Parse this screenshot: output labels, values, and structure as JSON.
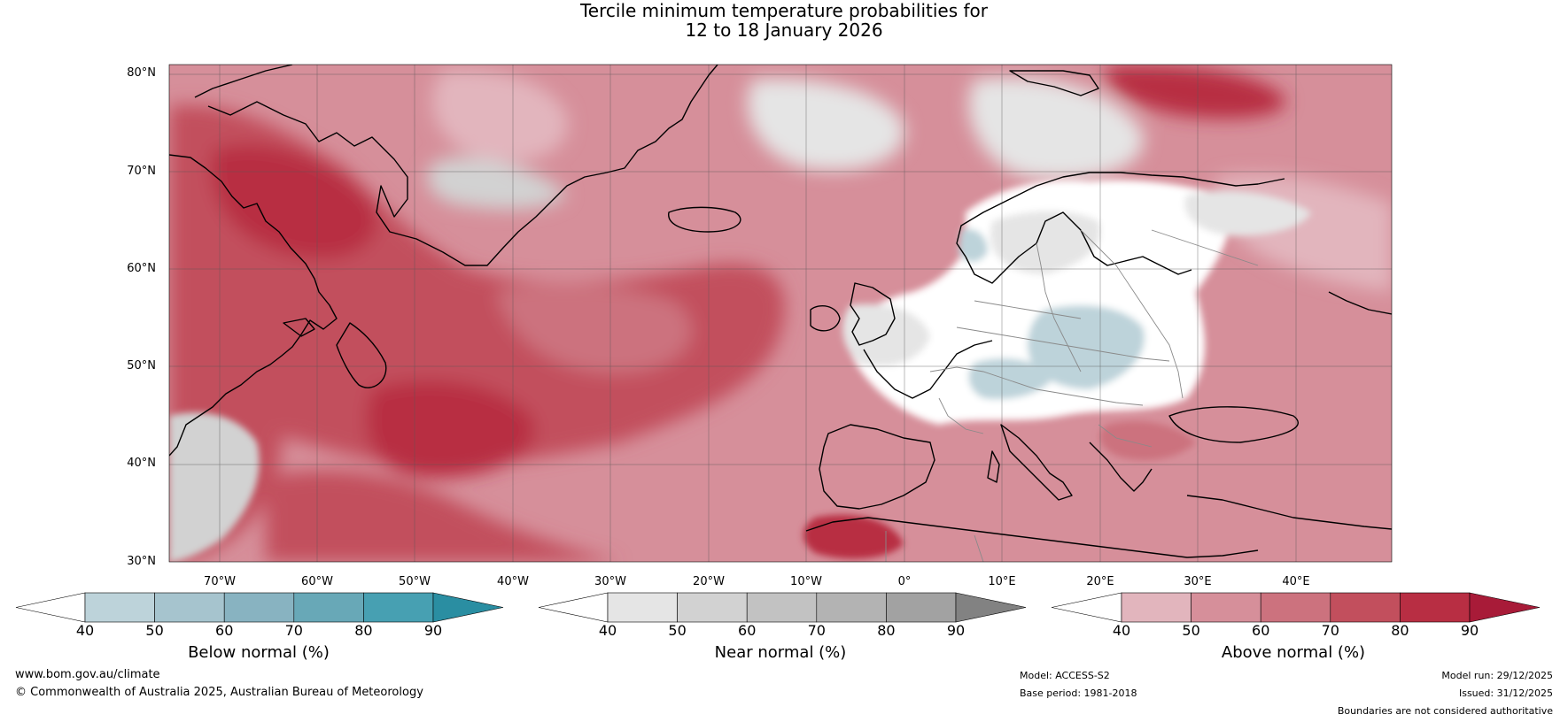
{
  "title": {
    "line1": "Tercile minimum temperature probabilities for",
    "line2": "12 to 18 January 2026"
  },
  "latitude_labels": [
    "80°N",
    "70°N",
    "60°N",
    "50°N",
    "40°N",
    "30°N"
  ],
  "longitude_labels": [
    "70°W",
    "60°W",
    "50°W",
    "40°W",
    "30°W",
    "20°W",
    "10°W",
    "0°",
    "10°E",
    "20°E",
    "30°E",
    "40°E"
  ],
  "colorbars": [
    {
      "title": "Below normal (%)",
      "ticks": [
        "40",
        "50",
        "60",
        "70",
        "80",
        "90"
      ],
      "colors": [
        "#ffffff",
        "#bdd3da",
        "#a6c4ce",
        "#88b3c1",
        "#68a8b7",
        "#47a0b2",
        "#2a8ea2"
      ]
    },
    {
      "title": "Near normal (%)",
      "ticks": [
        "40",
        "50",
        "60",
        "70",
        "80",
        "90"
      ],
      "colors": [
        "#ffffff",
        "#e5e5e5",
        "#d2d2d2",
        "#c2c2c2",
        "#b3b3b3",
        "#a2a2a2",
        "#828282"
      ]
    },
    {
      "title": "Above normal (%)",
      "ticks": [
        "40",
        "50",
        "60",
        "70",
        "80",
        "90"
      ],
      "colors": [
        "#ffffff",
        "#e2b5bd",
        "#d68f9a",
        "#cc727e",
        "#c24f5d",
        "#b82e43",
        "#a81b38"
      ]
    }
  ],
  "footer": {
    "website": "www.bom.gov.au/climate",
    "copyright": "© Commonwealth of Australia 2025, Australian Bureau of Meteorology",
    "model": "Model: ACCESS-S2",
    "base_period": "Base period: 1981-2018",
    "model_run": "Model run: 29/12/2025",
    "issued": "Issued: 31/12/2025",
    "disclaimer": "Boundaries are not considered authoritative"
  }
}
